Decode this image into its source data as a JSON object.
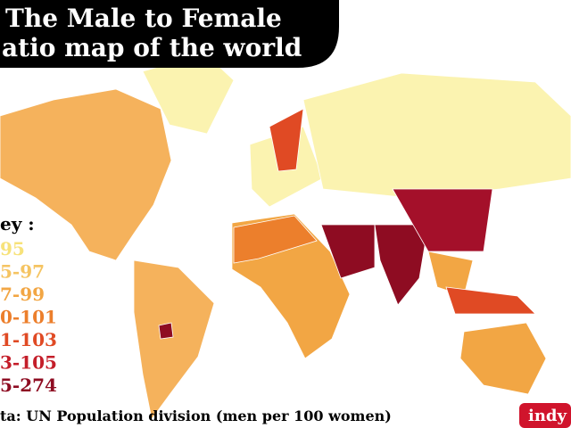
{
  "title_lines": [
    "The Male to Female",
    "atio map of the world"
  ],
  "key": {
    "label": "ey :",
    "items": [
      {
        "label": "95",
        "color": "#f7e27a"
      },
      {
        "label": "5-97",
        "color": "#f5c462"
      },
      {
        "label": "7-99",
        "color": "#f2a644"
      },
      {
        "label": "0-101",
        "color": "#ec7f2c"
      },
      {
        "label": "1-103",
        "color": "#e04a24"
      },
      {
        "label": "3-105",
        "color": "#c41e2a"
      },
      {
        "label": "5-274",
        "color": "#8e0c22"
      }
    ]
  },
  "source": "ta: UN Population division (men per 100 women)",
  "logo": "indy"
}
